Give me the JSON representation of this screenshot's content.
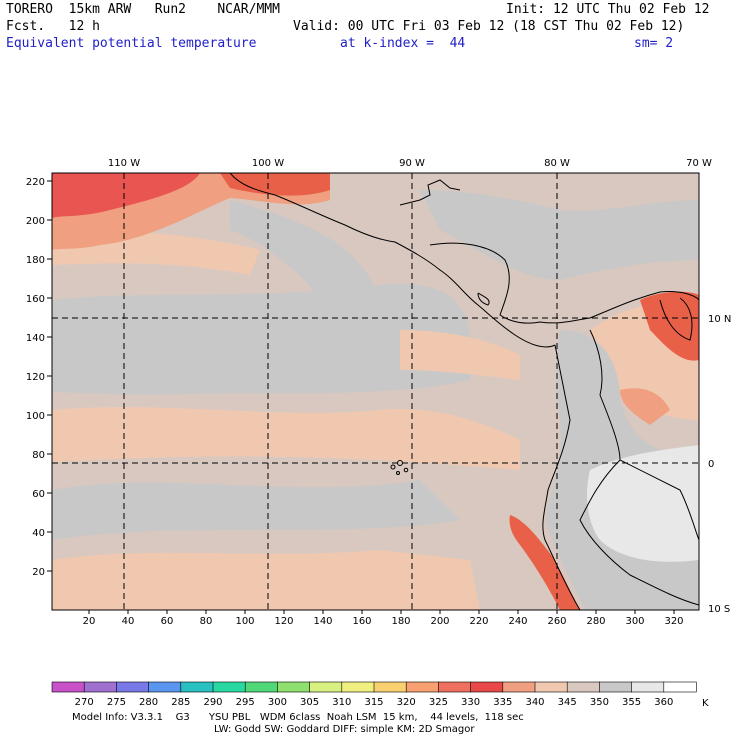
{
  "header": {
    "model": "TORERO  15km ARW   Run2    NCAR/MMM",
    "init": "Init: 12 UTC Thu 02 Feb 12",
    "fcst": "Fcst.   12 h",
    "valid": "Valid: 00 UTC Fri 03 Feb 12 (18 CST Thu 02 Feb 12)",
    "field": "Equivalent potential temperature",
    "index": "at k-index =  44",
    "smooth": "sm= 2"
  },
  "map": {
    "lon_labels": [
      "110 W",
      "100 W",
      "90 W",
      "80 W",
      "70 W"
    ],
    "lat_labels": [
      "10 N",
      "0",
      "10 S"
    ],
    "y_ticks": [
      "220",
      "200",
      "180",
      "160",
      "140",
      "120",
      "100",
      "80",
      "60",
      "40",
      "20"
    ],
    "x_ticks": [
      "20",
      "40",
      "60",
      "80",
      "100",
      "120",
      "140",
      "160",
      "180",
      "200",
      "220",
      "240",
      "260",
      "280",
      "300",
      "320"
    ]
  },
  "colorbar": {
    "labels": [
      "270",
      "275",
      "280",
      "285",
      "290",
      "295",
      "300",
      "305",
      "310",
      "315",
      "320",
      "325",
      "330",
      "335",
      "340",
      "345",
      "350",
      "355",
      "360"
    ],
    "unit": "K",
    "colors": [
      "#c850c8",
      "#a070d0",
      "#7878e8",
      "#5a96f0",
      "#28c0c0",
      "#28d8a0",
      "#50d878",
      "#90e070",
      "#d8f080",
      "#f0f080",
      "#f8d070",
      "#f8a070",
      "#f07060",
      "#e84848",
      "#f0a080",
      "#f0c8b0",
      "#d8c8c0",
      "#c8c8c8",
      "#e8e8e8",
      "#ffffff"
    ]
  },
  "footer": {
    "line1": "Model Info: V3.3.1    G3      YSU PBL   WDM 6class  Noah LSM  15 km,    44 levels,  118 sec",
    "line2": "LW: Godd SW: Goddard DIFF: simple KM: 2D Smagor"
  }
}
